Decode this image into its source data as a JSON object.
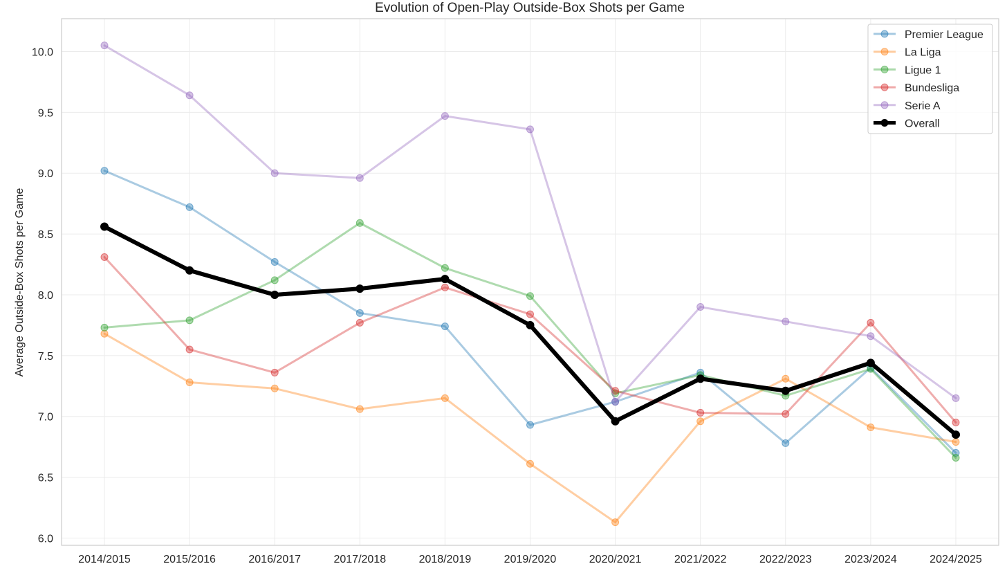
{
  "chart_data": {
    "type": "line",
    "title": "Evolution of Open-Play Outside-Box Shots per Game",
    "xlabel": "",
    "ylabel": "Average Outside-Box Shots per Game",
    "categories": [
      "2014/2015",
      "2015/2016",
      "2016/2017",
      "2017/2018",
      "2018/2019",
      "2019/2020",
      "2020/2021",
      "2021/2022",
      "2022/2023",
      "2023/2024",
      "2024/2025"
    ],
    "ylim": [
      5.94,
      10.27
    ],
    "yticks": [
      6.0,
      6.5,
      7.0,
      7.5,
      8.0,
      8.5,
      9.0,
      9.5,
      10.0
    ],
    "ytick_labels": [
      "6.0",
      "6.5",
      "7.0",
      "7.5",
      "8.0",
      "8.5",
      "9.0",
      "9.5",
      "10.0"
    ],
    "grid": true,
    "legend_position": "top-right",
    "series": [
      {
        "name": "Premier League",
        "color": "#1f77b4",
        "values": [
          9.02,
          8.72,
          8.27,
          7.85,
          7.74,
          6.93,
          7.12,
          7.36,
          6.78,
          7.4,
          6.7
        ]
      },
      {
        "name": "La Liga",
        "color": "#ff7f0e",
        "values": [
          7.68,
          7.28,
          7.23,
          7.06,
          7.15,
          6.61,
          6.13,
          6.96,
          7.31,
          6.91,
          6.79
        ]
      },
      {
        "name": "Ligue 1",
        "color": "#2ca02c",
        "values": [
          7.73,
          7.79,
          8.12,
          8.59,
          8.22,
          7.99,
          7.19,
          7.34,
          7.17,
          7.39,
          6.66
        ]
      },
      {
        "name": "Bundesliga",
        "color": "#d62728",
        "values": [
          8.31,
          7.55,
          7.36,
          7.77,
          8.06,
          7.84,
          7.21,
          7.03,
          7.02,
          7.77,
          6.95
        ]
      },
      {
        "name": "Serie A",
        "color": "#9467bd",
        "values": [
          10.05,
          9.64,
          9.0,
          8.96,
          9.47,
          9.36,
          7.12,
          7.9,
          7.78,
          7.66,
          7.15
        ]
      },
      {
        "name": "Overall",
        "color": "#000000",
        "values": [
          8.56,
          8.2,
          8.0,
          8.05,
          8.13,
          7.75,
          6.96,
          7.31,
          7.21,
          7.44,
          6.85
        ]
      }
    ]
  }
}
